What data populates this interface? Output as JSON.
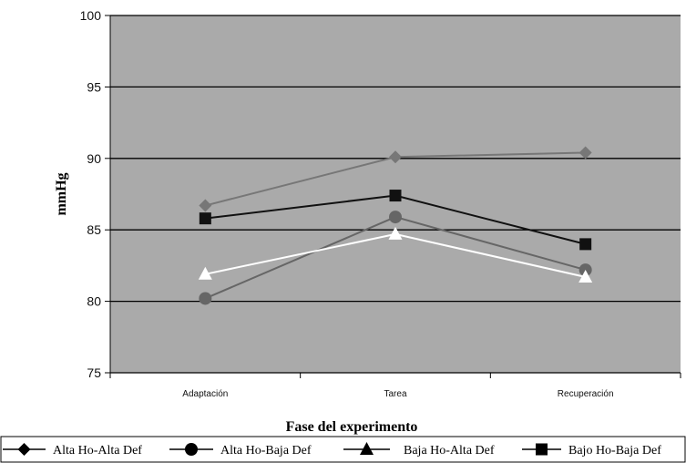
{
  "chart_data": {
    "type": "line",
    "title": "",
    "xlabel": "Fase del experimento",
    "ylabel": "mmHg",
    "categories": [
      "Adaptación",
      "Tarea",
      "Recuperación"
    ],
    "ylim": [
      75,
      100
    ],
    "yticks": [
      75,
      80,
      85,
      90,
      95,
      100
    ],
    "grid": true,
    "legend_position": "bottom",
    "plot_background": "#aaaaaa",
    "series": [
      {
        "name": "Alta Ho-Alta Def",
        "marker": "diamond",
        "color": "#777777",
        "values": [
          86.7,
          90.1,
          90.4
        ]
      },
      {
        "name": "Alta Ho-Baja Def",
        "marker": "circle",
        "color": "#666666",
        "values": [
          80.2,
          85.9,
          82.2
        ]
      },
      {
        "name": "Baja Ho-Alta Def",
        "marker": "triangle",
        "color": "#ffffff",
        "values": [
          81.9,
          84.7,
          81.7
        ]
      },
      {
        "name": "Bajo Ho-Baja Def",
        "marker": "square",
        "color": "#111111",
        "values": [
          85.8,
          87.4,
          84.0
        ]
      }
    ]
  }
}
